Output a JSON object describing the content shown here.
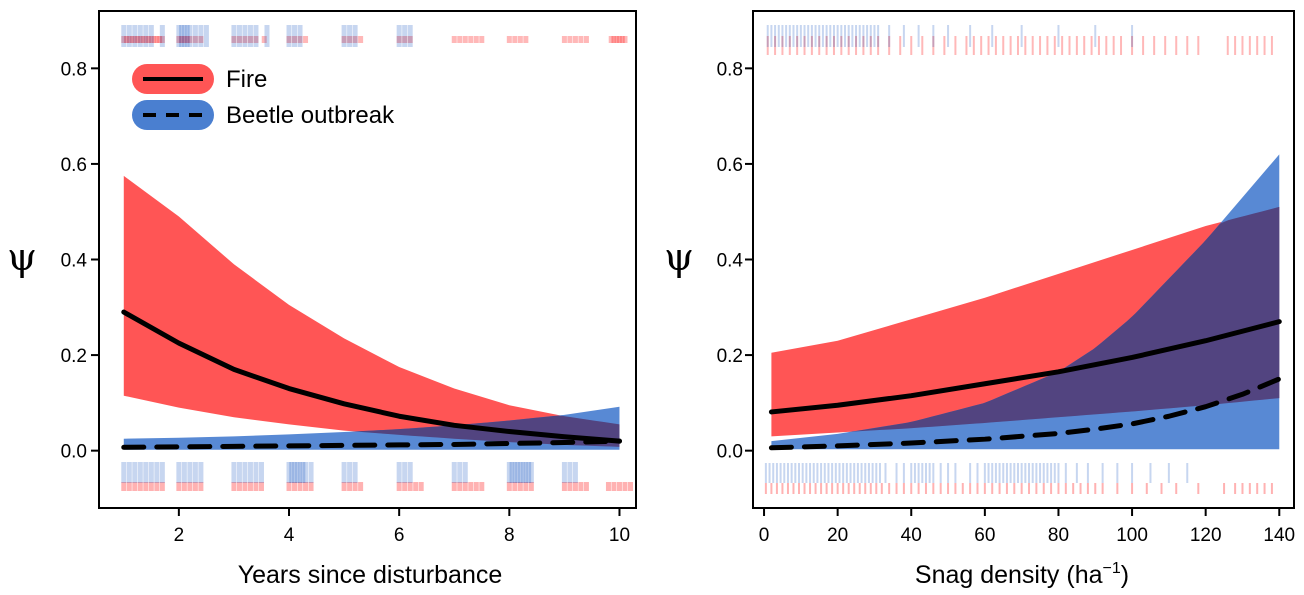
{
  "colors": {
    "fire": "#ff0000",
    "beetle": "#0044bb",
    "fire_band": "#ff5555",
    "beetle_band": "#4a7fd0",
    "overlap_band": "#524480",
    "line": "#000000"
  },
  "chart_data": [
    {
      "type": "line",
      "xlabel": "Years since disturbance",
      "ylabel": "ψ",
      "xlim": [
        0.55,
        10.3
      ],
      "ylim": [
        -0.12,
        0.92
      ],
      "xticks": [
        "2",
        "4",
        "6",
        "8",
        "10"
      ],
      "yticks": [
        "0.0",
        "0.2",
        "0.4",
        "0.6",
        "0.8"
      ],
      "grid": false,
      "legend": {
        "placement": "top-left",
        "entries": [
          {
            "label": "Fire",
            "line_style": "solid",
            "band": "fire"
          },
          {
            "label": "Beetle outbreak",
            "line_style": "dashed",
            "band": "beetle"
          }
        ]
      },
      "series": [
        {
          "name": "Fire",
          "line_style": "solid",
          "x": [
            1,
            2,
            3,
            4,
            5,
            6,
            7,
            8,
            9,
            10
          ],
          "y": [
            0.29,
            0.225,
            0.17,
            0.13,
            0.098,
            0.072,
            0.053,
            0.04,
            0.029,
            0.02
          ],
          "lower": [
            0.115,
            0.09,
            0.07,
            0.055,
            0.042,
            0.033,
            0.025,
            0.018,
            0.012,
            0.008
          ],
          "upper": [
            0.575,
            0.49,
            0.39,
            0.305,
            0.235,
            0.175,
            0.13,
            0.095,
            0.072,
            0.055
          ]
        },
        {
          "name": "Beetle outbreak",
          "line_style": "dashed",
          "x": [
            1,
            2,
            3,
            4,
            5,
            6,
            7,
            8,
            9,
            10
          ],
          "y": [
            0.007,
            0.008,
            0.009,
            0.01,
            0.011,
            0.012,
            0.013,
            0.015,
            0.017,
            0.02
          ],
          "lower": [
            0.002,
            0.002,
            0.002,
            0.002,
            0.002,
            0.002,
            0.002,
            0.002,
            0.002,
            0.002
          ],
          "upper": [
            0.025,
            0.027,
            0.03,
            0.034,
            0.039,
            0.045,
            0.053,
            0.063,
            0.075,
            0.092
          ]
        }
      ],
      "rug": {
        "fire_top": [
          1,
          1.05,
          1.1,
          1.15,
          1.2,
          1.25,
          1.3,
          1.35,
          1.4,
          1.45,
          1.5,
          1.55,
          1.6,
          1.65,
          1.7,
          2,
          2.05,
          2.1,
          2.15,
          2.2,
          2.3,
          2.4,
          3,
          3.1,
          3.2,
          3.3,
          3.4,
          3.55,
          4,
          4.1,
          4.2,
          4.3,
          5,
          5.1,
          5.2,
          5.3,
          6,
          6.1,
          6.2,
          7,
          7.1,
          7.2,
          7.3,
          7.4,
          7.5,
          8,
          8.1,
          8.2,
          8.3,
          9,
          9.1,
          9.2,
          9.3,
          9.4,
          9.85,
          9.9,
          9.95,
          10,
          10.05,
          10.1
        ],
        "beetle_top": [
          1,
          1.1,
          1.2,
          1.3,
          1.4,
          1.5,
          1.7,
          2,
          2.05,
          2.1,
          2.15,
          2.2,
          2.3,
          2.4,
          2.5,
          3,
          3.1,
          3.2,
          3.3,
          3.4,
          3.6,
          4,
          4.1,
          4.2,
          5,
          5.1,
          5.2,
          6,
          6.1,
          6.2
        ],
        "fire_bottom": [
          1,
          1.1,
          1.2,
          1.3,
          1.4,
          1.5,
          1.6,
          1.7,
          2,
          2.1,
          2.2,
          2.3,
          2.4,
          3,
          3.1,
          3.2,
          3.3,
          3.4,
          3.5,
          4,
          4.1,
          4.2,
          4.3,
          4.4,
          5,
          5.1,
          5.2,
          5.3,
          6,
          6.1,
          6.2,
          6.3,
          6.4,
          7,
          7.1,
          7.2,
          7.3,
          7.4,
          7.5,
          8,
          8.1,
          8.2,
          8.3,
          8.4,
          9,
          9.1,
          9.2,
          9.3,
          9.4,
          9.8,
          9.9,
          10,
          10.1,
          10.2
        ],
        "beetle_bottom": [
          1,
          1.1,
          1.2,
          1.3,
          1.4,
          1.5,
          1.6,
          1.7,
          2,
          2.1,
          2.2,
          2.3,
          2.4,
          3,
          3.1,
          3.2,
          3.3,
          3.4,
          3.5,
          4,
          4.05,
          4.1,
          4.15,
          4.2,
          4.25,
          4.3,
          4.4,
          5,
          5.1,
          5.2,
          6,
          6.1,
          6.2,
          7,
          7.1,
          7.2,
          8,
          8.05,
          8.1,
          8.15,
          8.2,
          8.25,
          8.3,
          8.35,
          8.4,
          9,
          9.1,
          9.2
        ]
      }
    },
    {
      "type": "line",
      "xlabel": "Snag density (ha",
      "xlabel_superscript": "−1",
      "xlabel_suffix": ")",
      "ylabel": "ψ",
      "xlim": [
        -3,
        144
      ],
      "ylim": [
        -0.12,
        0.92
      ],
      "xticks": [
        "0",
        "20",
        "40",
        "60",
        "80",
        "100",
        "120",
        "140"
      ],
      "yticks": [
        "0.0",
        "0.2",
        "0.4",
        "0.6",
        "0.8"
      ],
      "grid": false,
      "series": [
        {
          "name": "Fire",
          "line_style": "solid",
          "x": [
            2,
            20,
            40,
            60,
            80,
            100,
            120,
            140
          ],
          "y": [
            0.081,
            0.095,
            0.115,
            0.14,
            0.165,
            0.195,
            0.23,
            0.27
          ],
          "lower": [
            0.03,
            0.038,
            0.047,
            0.058,
            0.07,
            0.082,
            0.095,
            0.11
          ],
          "upper": [
            0.205,
            0.23,
            0.275,
            0.32,
            0.37,
            0.42,
            0.47,
            0.51
          ]
        },
        {
          "name": "Beetle outbreak",
          "line_style": "dashed",
          "x": [
            2,
            20,
            40,
            60,
            80,
            90,
            100,
            110,
            120,
            130,
            140
          ],
          "y": [
            0.006,
            0.01,
            0.016,
            0.024,
            0.036,
            0.045,
            0.056,
            0.072,
            0.092,
            0.118,
            0.15
          ],
          "lower": [
            0.003,
            0.003,
            0.003,
            0.003,
            0.003,
            0.003,
            0.003,
            0.003,
            0.003,
            0.003,
            0.003
          ],
          "upper": [
            0.02,
            0.035,
            0.06,
            0.1,
            0.165,
            0.215,
            0.28,
            0.36,
            0.44,
            0.53,
            0.62
          ]
        }
      ],
      "rug": {
        "fire_top": [
          1,
          3,
          5,
          7,
          9,
          11,
          13,
          15,
          17,
          19,
          21,
          23,
          25,
          27,
          29,
          31,
          34,
          37,
          40,
          43,
          46,
          49,
          52,
          55,
          57,
          59,
          61,
          63,
          65,
          67,
          69,
          71,
          73,
          75,
          77,
          79,
          81,
          83,
          85,
          87,
          89,
          91,
          93,
          95,
          97,
          100,
          103,
          106,
          109,
          112,
          115,
          118,
          126,
          128,
          130,
          132,
          134,
          136,
          138
        ],
        "beetle_top": [
          1,
          2,
          3,
          4,
          5,
          6,
          7,
          8,
          9,
          10,
          11,
          12,
          13,
          14,
          15,
          16,
          17,
          18,
          19,
          20,
          21,
          22,
          23,
          24,
          25,
          26,
          27,
          28,
          29,
          30,
          31,
          34,
          38,
          42,
          46,
          50,
          56,
          62,
          70,
          80,
          90,
          100
        ],
        "fire_bottom": [
          0.5,
          2,
          3.5,
          5,
          6.5,
          8,
          9.5,
          11,
          12.5,
          14,
          15.5,
          17,
          18.5,
          20,
          21.5,
          23,
          24.5,
          26,
          27.5,
          29,
          30.5,
          32,
          34,
          36,
          38,
          40,
          42,
          44,
          46,
          48,
          50,
          52,
          54,
          56,
          58,
          60,
          62,
          64,
          66,
          68,
          70,
          72,
          74,
          76,
          78,
          80,
          82,
          84,
          86,
          88,
          90,
          92,
          96,
          100,
          104,
          108,
          112,
          118,
          125,
          128,
          130,
          132,
          134,
          136,
          138
        ],
        "beetle_bottom": [
          0.5,
          1.5,
          2.5,
          3.5,
          4.5,
          5.5,
          6.5,
          7.5,
          8.5,
          9.5,
          10.5,
          11.5,
          12.5,
          13.5,
          14.5,
          15.5,
          16.5,
          17.5,
          18.5,
          19.5,
          20.5,
          21.5,
          22.5,
          23.5,
          24.5,
          25.5,
          26.5,
          27.5,
          28.5,
          29.5,
          30.5,
          31.5,
          33,
          36,
          38,
          40,
          41,
          42,
          43,
          44,
          45,
          46,
          48,
          50,
          52,
          56,
          58,
          60,
          61,
          62,
          63,
          64,
          65,
          66,
          67,
          68,
          69,
          70,
          71,
          72,
          73,
          74,
          75,
          76,
          77,
          78,
          79,
          80,
          82,
          85,
          88,
          92,
          96,
          100,
          105,
          110,
          115
        ]
      }
    }
  ]
}
